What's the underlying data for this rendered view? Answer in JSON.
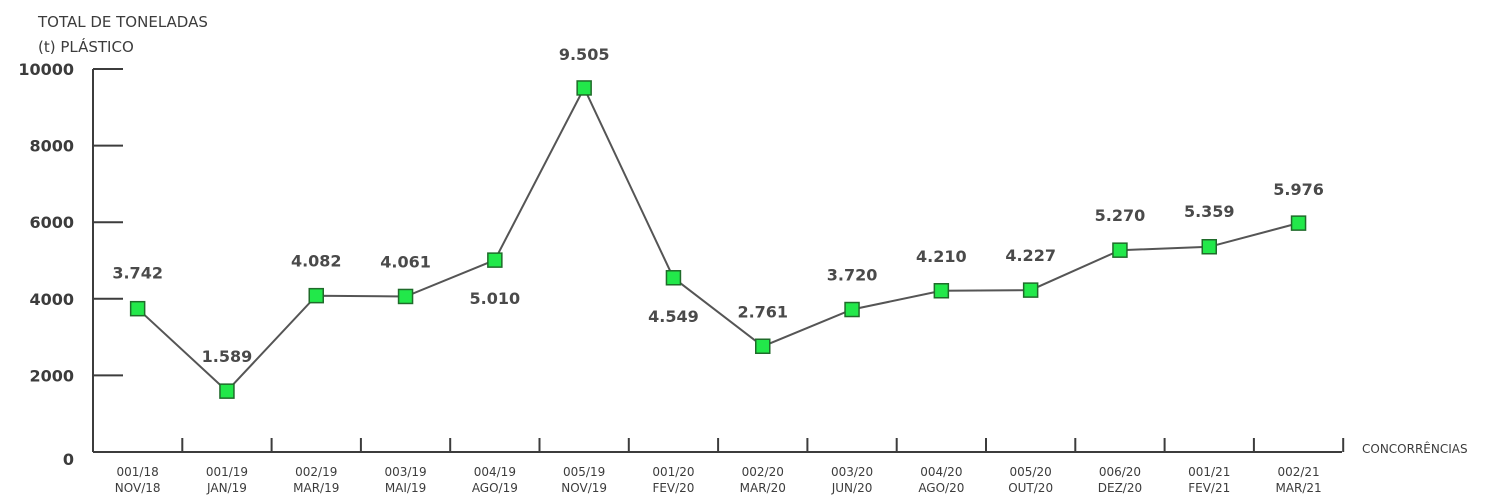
{
  "chart_data": {
    "type": "line",
    "ylabel_lines": [
      "TOTAL DE TONELADAS",
      "(t) PLÁSTICO"
    ],
    "xlabel": "CONCORRÊNCIAS",
    "ylim": [
      0,
      10000
    ],
    "yticks": [
      "0",
      "2000",
      "4000",
      "6000",
      "8000",
      "10000"
    ],
    "ytick_values": [
      0,
      2000,
      4000,
      6000,
      8000,
      10000
    ],
    "categories": [
      [
        "001/18",
        "NOV/18"
      ],
      [
        "001/19",
        "JAN/19"
      ],
      [
        "002/19",
        "MAR/19"
      ],
      [
        "003/19",
        "MAI/19"
      ],
      [
        "004/19",
        "AGO/19"
      ],
      [
        "005/19",
        "NOV/19"
      ],
      [
        "001/20",
        "FEV/20"
      ],
      [
        "002/20",
        "MAR/20"
      ],
      [
        "003/20",
        "JUN/20"
      ],
      [
        "004/20",
        "AGO/20"
      ],
      [
        "005/20",
        "OUT/20"
      ],
      [
        "006/20",
        "DEZ/20"
      ],
      [
        "001/21",
        "FEV/21"
      ],
      [
        "002/21",
        "MAR/21"
      ]
    ],
    "values": [
      3742,
      1589,
      4082,
      4061,
      5010,
      9505,
      4549,
      2761,
      3720,
      4210,
      4227,
      5270,
      5359,
      5976
    ],
    "value_labels": [
      "3.742",
      "1.589",
      "4.082",
      "4.061",
      "5.010",
      "9.505",
      "4.549",
      "2.761",
      "3.720",
      "4.210",
      "4.227",
      "5.270",
      "5.359",
      "5.976"
    ],
    "marker_color": "#22e84a",
    "marker_border": "#1f6b2a",
    "line_color": "#555555",
    "grid": false
  }
}
